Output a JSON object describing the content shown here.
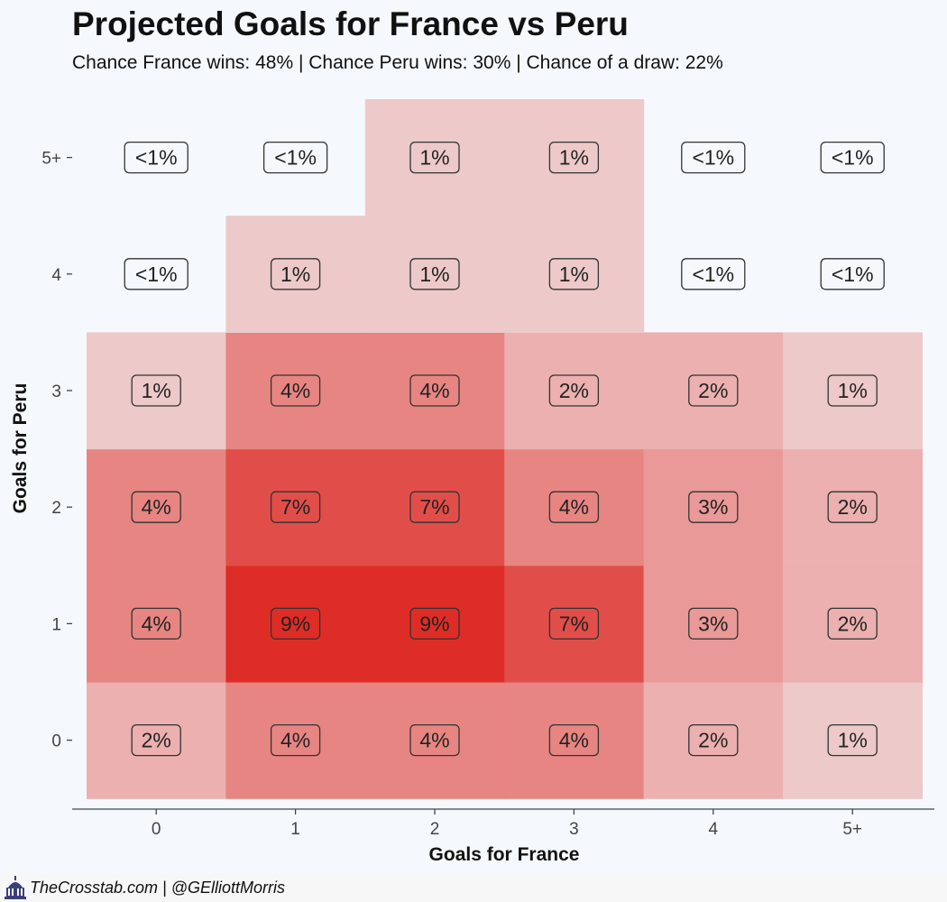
{
  "title": "Projected Goals for France vs Peru",
  "subtitle": "Chance France wins: 48% | Chance Peru wins: 30% | Chance of a draw: 22%",
  "footer": {
    "credit": "TheCrosstab.com | @GElliottMorris",
    "icon": "capitol-icon"
  },
  "colors": {
    "background": "#f5f9fd",
    "scale_low": "#f1eef0",
    "scale_high": "#de2d26"
  },
  "chart_data": {
    "type": "heatmap",
    "xlabel": "Goals for France",
    "ylabel": "Goals for Peru",
    "x_categories": [
      "0",
      "1",
      "2",
      "3",
      "4",
      "5+"
    ],
    "y_categories": [
      "0",
      "1",
      "2",
      "3",
      "4",
      "5+"
    ],
    "legend": "none",
    "grid": false,
    "cells": [
      {
        "x": "0",
        "y": "0",
        "value": 2,
        "label": "2%"
      },
      {
        "x": "1",
        "y": "0",
        "value": 4,
        "label": "4%"
      },
      {
        "x": "2",
        "y": "0",
        "value": 4,
        "label": "4%"
      },
      {
        "x": "3",
        "y": "0",
        "value": 4,
        "label": "4%"
      },
      {
        "x": "4",
        "y": "0",
        "value": 2,
        "label": "2%"
      },
      {
        "x": "5+",
        "y": "0",
        "value": 1,
        "label": "1%"
      },
      {
        "x": "0",
        "y": "1",
        "value": 4,
        "label": "4%"
      },
      {
        "x": "1",
        "y": "1",
        "value": 9,
        "label": "9%"
      },
      {
        "x": "2",
        "y": "1",
        "value": 9,
        "label": "9%"
      },
      {
        "x": "3",
        "y": "1",
        "value": 7,
        "label": "7%"
      },
      {
        "x": "4",
        "y": "1",
        "value": 3,
        "label": "3%"
      },
      {
        "x": "5+",
        "y": "1",
        "value": 2,
        "label": "2%"
      },
      {
        "x": "0",
        "y": "2",
        "value": 4,
        "label": "4%"
      },
      {
        "x": "1",
        "y": "2",
        "value": 7,
        "label": "7%"
      },
      {
        "x": "2",
        "y": "2",
        "value": 7,
        "label": "7%"
      },
      {
        "x": "3",
        "y": "2",
        "value": 4,
        "label": "4%"
      },
      {
        "x": "4",
        "y": "2",
        "value": 3,
        "label": "3%"
      },
      {
        "x": "5+",
        "y": "2",
        "value": 2,
        "label": "2%"
      },
      {
        "x": "0",
        "y": "3",
        "value": 1,
        "label": "1%"
      },
      {
        "x": "1",
        "y": "3",
        "value": 4,
        "label": "4%"
      },
      {
        "x": "2",
        "y": "3",
        "value": 4,
        "label": "4%"
      },
      {
        "x": "3",
        "y": "3",
        "value": 2,
        "label": "2%"
      },
      {
        "x": "4",
        "y": "3",
        "value": 2,
        "label": "2%"
      },
      {
        "x": "5+",
        "y": "3",
        "value": 1,
        "label": "1%"
      },
      {
        "x": "0",
        "y": "4",
        "value": 0.4,
        "label": "<1%"
      },
      {
        "x": "1",
        "y": "4",
        "value": 1,
        "label": "1%"
      },
      {
        "x": "2",
        "y": "4",
        "value": 1,
        "label": "1%"
      },
      {
        "x": "3",
        "y": "4",
        "value": 1,
        "label": "1%"
      },
      {
        "x": "4",
        "y": "4",
        "value": 0.4,
        "label": "<1%"
      },
      {
        "x": "5+",
        "y": "4",
        "value": 0.4,
        "label": "<1%"
      },
      {
        "x": "0",
        "y": "5+",
        "value": 0.4,
        "label": "<1%"
      },
      {
        "x": "1",
        "y": "5+",
        "value": 0.4,
        "label": "<1%"
      },
      {
        "x": "2",
        "y": "5+",
        "value": 1,
        "label": "1%"
      },
      {
        "x": "3",
        "y": "5+",
        "value": 1,
        "label": "1%"
      },
      {
        "x": "4",
        "y": "5+",
        "value": 0.4,
        "label": "<1%"
      },
      {
        "x": "5+",
        "y": "5+",
        "value": 0.4,
        "label": "<1%"
      }
    ]
  }
}
